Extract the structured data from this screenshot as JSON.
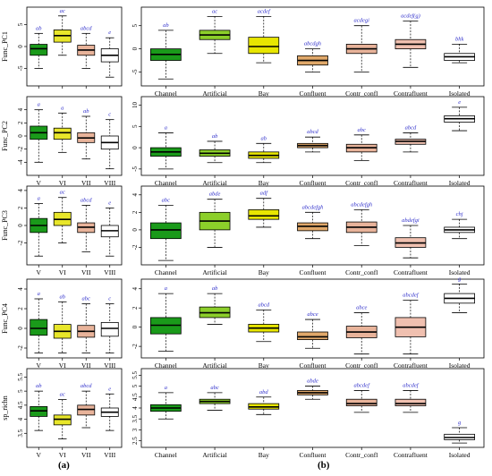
{
  "figure": {
    "caption_a": "(a)",
    "caption_b": "(b)"
  },
  "colors": {
    "V": "#1a9a1a",
    "VI": "#e8e62a",
    "VII": "#e8b39a",
    "VIII": "#ffffff",
    "Channel": "#1a9a1a",
    "Artificial": "#8ccf2a",
    "Bay": "#e8e600",
    "Confluent": "#e0a86a",
    "Contr_confl": "#e8b39a",
    "Contrafluent": "#f0c0b0",
    "Isolated": "#ffffff",
    "letter": "#3333cc",
    "box_edge": "#000000",
    "median": "#000000"
  },
  "chart_data": [
    {
      "type": "boxplot",
      "panel": "a",
      "ylabel": "Func_PC1",
      "ylim": [
        -9,
        9
      ],
      "yticks": [
        -5,
        0,
        5
      ],
      "categories": [
        "V",
        "VI",
        "VII",
        "VIII"
      ],
      "show_xlabels": false,
      "boxes": [
        {
          "min": -5,
          "q1": -2,
          "median": -0.5,
          "q3": 0.5,
          "max": 3,
          "letter": "ab"
        },
        {
          "min": -2,
          "q1": 1,
          "median": 2.5,
          "q3": 3.8,
          "max": 7,
          "letter": "ac"
        },
        {
          "min": -5,
          "q1": -2,
          "median": -0.8,
          "q3": 0.3,
          "max": 3,
          "letter": "abcd"
        },
        {
          "min": -7,
          "q1": -3.5,
          "median": -2,
          "q3": -0.5,
          "max": 2,
          "letter": "e"
        }
      ]
    },
    {
      "type": "boxplot",
      "panel": "a",
      "ylabel": "Func_PC2",
      "ylim": [
        -6,
        6
      ],
      "yticks": [
        -4,
        -2,
        0,
        2,
        4
      ],
      "categories": [
        "V",
        "VI",
        "VII",
        "VIII"
      ],
      "show_xlabels": true,
      "boxes": [
        {
          "min": -4,
          "q1": -0.5,
          "median": 0.5,
          "q3": 1.5,
          "max": 4,
          "letter": "a"
        },
        {
          "min": -2.5,
          "q1": -0.5,
          "median": 0.5,
          "q3": 1.2,
          "max": 3.5,
          "letter": "a"
        },
        {
          "min": -3.5,
          "q1": -1,
          "median": -0.3,
          "q3": 0.5,
          "max": 3,
          "letter": "ab"
        },
        {
          "min": -5,
          "q1": -2,
          "median": -1,
          "q3": 0,
          "max": 2.5,
          "letter": "c"
        }
      ]
    },
    {
      "type": "boxplot",
      "panel": "a",
      "ylabel": "Func_PC3",
      "ylim": [
        -4.5,
        4.5
      ],
      "yticks": [
        -2,
        0,
        2,
        4
      ],
      "categories": [
        "V",
        "VI",
        "VII",
        "VIII"
      ],
      "show_xlabels": true,
      "boxes": [
        {
          "min": -3.5,
          "q1": -0.8,
          "median": 0,
          "q3": 0.8,
          "max": 2.5,
          "letter": "a"
        },
        {
          "min": -2,
          "q1": 0,
          "median": 0.7,
          "q3": 1.5,
          "max": 3.2,
          "letter": "ac"
        },
        {
          "min": -3,
          "q1": -0.8,
          "median": -0.2,
          "q3": 0.3,
          "max": 2.3,
          "letter": "abcd"
        },
        {
          "min": -3.5,
          "q1": -1.3,
          "median": -0.6,
          "q3": 0,
          "max": 2,
          "letter": "e"
        }
      ]
    },
    {
      "type": "boxplot",
      "panel": "a",
      "ylabel": "Func_PC4",
      "ylim": [
        -3,
        5
      ],
      "yticks": [
        -2,
        0,
        2,
        4
      ],
      "categories": [
        "V",
        "VI",
        "VII",
        "VIII"
      ],
      "show_xlabels": true,
      "boxes": [
        {
          "min": -2.5,
          "q1": -0.7,
          "median": 0,
          "q3": 0.9,
          "max": 3,
          "letter": "a"
        },
        {
          "min": -2.5,
          "q1": -1,
          "median": -0.3,
          "q3": 0.4,
          "max": 2.7,
          "letter": "ab"
        },
        {
          "min": -2.5,
          "q1": -0.9,
          "median": -0.3,
          "q3": 0.3,
          "max": 2.5,
          "letter": "abc"
        },
        {
          "min": -2.5,
          "q1": -0.8,
          "median": 0,
          "q3": 0.6,
          "max": 2.5,
          "letter": "c"
        }
      ]
    },
    {
      "type": "boxplot",
      "panel": "a",
      "ylabel": "sp_richn",
      "ylim": [
        3.0,
        5.8
      ],
      "yticks": [
        3.5,
        4.0,
        4.5,
        5.0,
        5.5
      ],
      "categories": [
        "V",
        "VI",
        "VII",
        "VIII"
      ],
      "show_xlabels": true,
      "boxes": [
        {
          "min": 3.6,
          "q1": 4.1,
          "median": 4.3,
          "q3": 4.45,
          "max": 5.0,
          "letter": "ab"
        },
        {
          "min": 3.3,
          "q1": 3.8,
          "median": 4.0,
          "q3": 4.15,
          "max": 4.7,
          "letter": "ac"
        },
        {
          "min": 3.7,
          "q1": 4.15,
          "median": 4.35,
          "q3": 4.5,
          "max": 5.0,
          "letter": "abcd"
        },
        {
          "min": 3.6,
          "q1": 4.1,
          "median": 4.25,
          "q3": 4.4,
          "max": 4.9,
          "letter": "e"
        }
      ]
    },
    {
      "type": "boxplot",
      "panel": "b",
      "ylim": [
        -8,
        9
      ],
      "yticks": [
        -5,
        0,
        5
      ],
      "categories": [
        "Channel",
        "Artificial",
        "Bay",
        "Confluent",
        "Contr_confl",
        "Contrafluent",
        "Isolated"
      ],
      "show_xlabels": true,
      "boxes": [
        {
          "min": -6.5,
          "q1": -2.5,
          "median": -1.2,
          "q3": 0,
          "max": 4,
          "letter": "ab"
        },
        {
          "min": -1,
          "q1": 2,
          "median": 3,
          "q3": 4,
          "max": 7,
          "letter": "ac"
        },
        {
          "min": -3,
          "q1": -1,
          "median": 0.5,
          "q3": 2.5,
          "max": 7,
          "letter": "acdef"
        },
        {
          "min": -5,
          "q1": -3.5,
          "median": -2.5,
          "q3": -1.5,
          "max": 0,
          "letter": "abcdgh"
        },
        {
          "min": -5,
          "q1": -1,
          "median": 0,
          "q3": 1,
          "max": 5,
          "letter": "acdegi"
        },
        {
          "min": -4,
          "q1": 0,
          "median": 1,
          "q3": 2,
          "max": 6,
          "letter": "acdef(g)"
        },
        {
          "min": -3,
          "q1": -2.5,
          "median": -1.7,
          "q3": -1,
          "max": 1,
          "letter": "bhk"
        }
      ]
    },
    {
      "type": "boxplot",
      "panel": "b",
      "ylim": [
        -6.5,
        12
      ],
      "yticks": [
        -5,
        0,
        5,
        10
      ],
      "categories": [
        "Channel",
        "Artificial",
        "Bay",
        "Confluent",
        "Contr_confl",
        "Contrafluent",
        "Isolated"
      ],
      "show_xlabels": true,
      "boxes": [
        {
          "min": -5,
          "q1": -2,
          "median": -1,
          "q3": 0,
          "max": 3.5,
          "letter": "a"
        },
        {
          "min": -3.5,
          "q1": -2,
          "median": -1.3,
          "q3": -0.5,
          "max": 1.5,
          "letter": "ab"
        },
        {
          "min": -3.5,
          "q1": -2.5,
          "median": -1.8,
          "q3": -1,
          "max": 1,
          "letter": "ab"
        },
        {
          "min": -1,
          "q1": 0,
          "median": 0.5,
          "q3": 1,
          "max": 2.5,
          "letter": "abcd"
        },
        {
          "min": -3,
          "q1": -1,
          "median": 0,
          "q3": 0.8,
          "max": 3,
          "letter": "abc"
        },
        {
          "min": -1,
          "q1": 0.8,
          "median": 1.5,
          "q3": 2,
          "max": 3.5,
          "letter": "abcd"
        },
        {
          "min": 4,
          "q1": 6,
          "median": 6.8,
          "q3": 7.5,
          "max": 9.5,
          "letter": "e"
        }
      ]
    },
    {
      "type": "boxplot",
      "panel": "b",
      "ylim": [
        -4,
        5
      ],
      "yticks": [
        -2,
        0,
        2,
        4
      ],
      "categories": [
        "Channel",
        "Artificial",
        "Bay",
        "Confluent",
        "Contr_confl",
        "Contrafluent",
        "Isolated"
      ],
      "show_xlabels": true,
      "boxes": [
        {
          "min": -3.5,
          "q1": -1,
          "median": 0,
          "q3": 0.8,
          "max": 2.8,
          "letter": "abc"
        },
        {
          "min": -2,
          "q1": 0,
          "median": 1,
          "q3": 2,
          "max": 3.5,
          "letter": "abde"
        },
        {
          "min": 0.3,
          "q1": 1.2,
          "median": 1.6,
          "q3": 2.3,
          "max": 3.6,
          "letter": "adf"
        },
        {
          "min": -1,
          "q1": -0.1,
          "median": 0.4,
          "q3": 0.8,
          "max": 2,
          "letter": "abcdefgh"
        },
        {
          "min": -1.8,
          "q1": -0.3,
          "median": 0.3,
          "q3": 0.9,
          "max": 2.3,
          "letter": "abcdefgh"
        },
        {
          "min": -3.2,
          "q1": -2,
          "median": -1.5,
          "q3": -0.9,
          "max": 0.5,
          "letter": "abdefgi"
        },
        {
          "min": -1,
          "q1": -0.3,
          "median": 0,
          "q3": 0.3,
          "max": 1.2,
          "letter": "chj"
        }
      ]
    },
    {
      "type": "boxplot",
      "panel": "b",
      "ylim": [
        -3.2,
        5
      ],
      "yticks": [
        -2,
        0,
        2,
        4
      ],
      "categories": [
        "Channel",
        "Artificial",
        "Bay",
        "Confluent",
        "Contr_confl",
        "Contrafluent",
        "Isolated"
      ],
      "show_xlabels": true,
      "boxes": [
        {
          "min": -2.5,
          "q1": -0.7,
          "median": 0.2,
          "q3": 1,
          "max": 3.5,
          "letter": "a"
        },
        {
          "min": 0.3,
          "q1": 1,
          "median": 1.5,
          "q3": 2.1,
          "max": 3.5,
          "letter": "ab"
        },
        {
          "min": -1.5,
          "q1": -0.5,
          "median": -0.1,
          "q3": 0.3,
          "max": 1.8,
          "letter": "abcd"
        },
        {
          "min": -2.2,
          "q1": -1.3,
          "median": -1,
          "q3": -0.5,
          "max": 0.8,
          "letter": "abce"
        },
        {
          "min": -2.8,
          "q1": -1.1,
          "median": -0.5,
          "q3": 0.1,
          "max": 1.5,
          "letter": "abce"
        },
        {
          "min": -2.8,
          "q1": -1,
          "median": 0,
          "q3": 1,
          "max": 2.8,
          "letter": "abcdef"
        },
        {
          "min": 1.5,
          "q1": 2.5,
          "median": 3,
          "q3": 3.5,
          "max": 4.5,
          "letter": "g"
        }
      ]
    },
    {
      "type": "boxplot",
      "panel": "b",
      "ylim": [
        2.2,
        5.8
      ],
      "yticks": [
        2.5,
        3.0,
        3.5,
        4.0,
        4.5,
        5.0,
        5.5
      ],
      "categories": [
        "Channel",
        "Artificial",
        "Bay",
        "Confluent",
        "Contr_confl",
        "Contrafluent",
        "Isolated"
      ],
      "show_xlabels": true,
      "boxes": [
        {
          "min": 3.5,
          "q1": 3.85,
          "median": 4.0,
          "q3": 4.15,
          "max": 4.7,
          "letter": "a"
        },
        {
          "min": 3.9,
          "q1": 4.2,
          "median": 4.3,
          "q3": 4.4,
          "max": 4.7,
          "letter": "abc"
        },
        {
          "min": 3.7,
          "q1": 3.95,
          "median": 4.05,
          "q3": 4.2,
          "max": 4.5,
          "letter": "abd"
        },
        {
          "min": 4.4,
          "q1": 4.6,
          "median": 4.7,
          "q3": 4.8,
          "max": 5.0,
          "letter": "abde"
        },
        {
          "min": 3.8,
          "q1": 4.1,
          "median": 4.2,
          "q3": 4.4,
          "max": 4.8,
          "letter": "abcdef"
        },
        {
          "min": 3.8,
          "q1": 4.1,
          "median": 4.2,
          "q3": 4.4,
          "max": 4.8,
          "letter": "abcdef"
        },
        {
          "min": 2.4,
          "q1": 2.55,
          "median": 2.65,
          "q3": 2.8,
          "max": 3.1,
          "letter": "g"
        }
      ]
    }
  ]
}
